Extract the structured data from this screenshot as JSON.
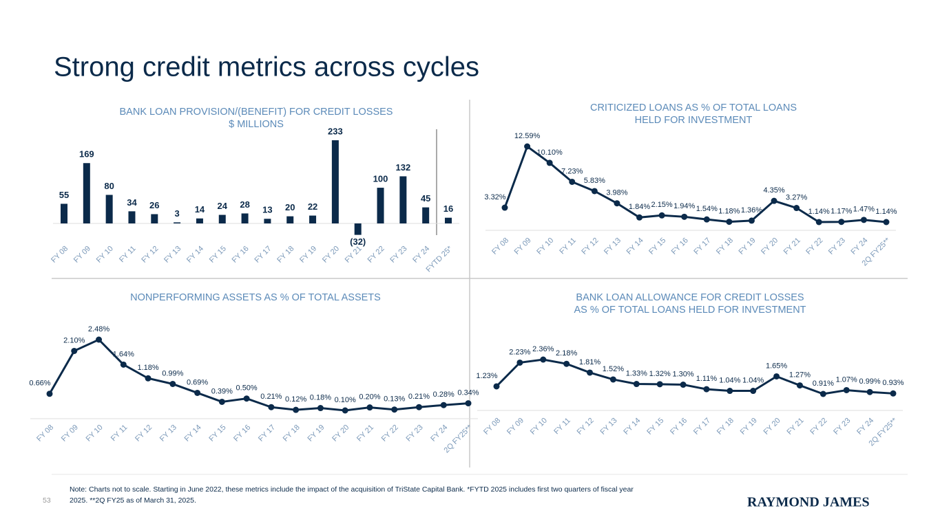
{
  "title": "Strong credit metrics across cycles",
  "note": [
    "Note: Charts not to scale.  Starting in June 2022, these metrics include the impact of the acquisition of TriState Capital Bank. *FYTD 2025 includes first two quarters of fiscal year",
    "2025. **2Q FY25 as of March 31, 2025."
  ],
  "page_number": "53",
  "logo": "RAYMOND JAMES",
  "chart_data": [
    {
      "type": "bar",
      "title": "BANK LOAN PROVISION/(BENEFIT) FOR CREDIT LOSSES",
      "subtitle": "$ MILLIONS",
      "color": "#0b2a4a",
      "categories": [
        "FY 08",
        "FY 09",
        "FY 10",
        "FY 11",
        "FY 12",
        "FY 13",
        "FY 14",
        "FY 15",
        "FY 16",
        "FY 17",
        "FY 18",
        "FY 19",
        "FY 20",
        "FY 21",
        "FY 22",
        "FY 23",
        "FY 24",
        "FYTD 25*"
      ],
      "values": [
        55,
        169,
        80,
        34,
        26,
        3,
        14,
        24,
        28,
        13,
        20,
        22,
        233,
        -32,
        100,
        132,
        45,
        16
      ],
      "value_labels": [
        "55",
        "169",
        "80",
        "34",
        "26",
        "3",
        "14",
        "24",
        "28",
        "13",
        "20",
        "22",
        "233",
        "(32)",
        "100",
        "132",
        "45",
        "16"
      ]
    },
    {
      "type": "line",
      "title": [
        "CRITICIZED LOANS AS % OF TOTAL LOANS",
        "HELD FOR INVESTMENT"
      ],
      "color": "#0b2a4a",
      "categories": [
        "FY 08",
        "FY 09",
        "FY 10",
        "FY 11",
        "FY 12",
        "FY 13",
        "FY 14",
        "FY 15",
        "FY 16",
        "FY 17",
        "FY 18",
        "FY 19",
        "FY 20",
        "FY 21",
        "FY 22",
        "FY 23",
        "FY 24",
        "2Q FY25**"
      ],
      "values": [
        3.32,
        12.59,
        10.1,
        7.23,
        5.83,
        3.98,
        1.84,
        2.15,
        1.94,
        1.54,
        1.18,
        1.36,
        4.35,
        3.27,
        1.14,
        1.17,
        1.47,
        1.14
      ],
      "value_labels": [
        "3.32%",
        "12.59%",
        "10.10%",
        "7.23%",
        "5.83%",
        "3.98%",
        "1.84%",
        "2.15%",
        "1.94%",
        "1.54%",
        "1.18%",
        "1.36%",
        "4.35%",
        "3.27%",
        "1.14%",
        "1.17%",
        "1.47%",
        "1.14%"
      ]
    },
    {
      "type": "line",
      "title": [
        "NONPERFORMING ASSETS AS % OF TOTAL ASSETS"
      ],
      "color": "#0b2a4a",
      "categories": [
        "FY 08",
        "FY 09",
        "FY 10",
        "FY 11",
        "FY 12",
        "FY 13",
        "FY 14",
        "FY 15",
        "FY 16",
        "FY 17",
        "FY 18",
        "FY 19",
        "FY 20",
        "FY 21",
        "FY 22",
        "FY 23",
        "FY 24",
        "2Q FY25**"
      ],
      "values": [
        0.66,
        2.1,
        2.48,
        1.64,
        1.18,
        0.99,
        0.69,
        0.39,
        0.5,
        0.21,
        0.12,
        0.18,
        0.1,
        0.2,
        0.13,
        0.21,
        0.28,
        0.34
      ],
      "value_labels": [
        "0.66%",
        "2.10%",
        "2.48%",
        "1.64%",
        "1.18%",
        "0.99%",
        "0.69%",
        "0.39%",
        "0.50%",
        "0.21%",
        "0.12%",
        "0.18%",
        "0.10%",
        "0.20%",
        "0.13%",
        "0.21%",
        "0.28%",
        "0.34%"
      ]
    },
    {
      "type": "line",
      "title": [
        "BANK LOAN ALLOWANCE FOR CREDIT LOSSES",
        "AS % OF TOTAL LOANS HELD FOR INVESTMENT"
      ],
      "color": "#0b2a4a",
      "categories": [
        "FY 08",
        "FY 09",
        "FY 10",
        "FY 11",
        "FY 12",
        "FY 13",
        "FY 14",
        "FY 15",
        "FY 16",
        "FY 17",
        "FY 18",
        "FY 19",
        "FY 20",
        "FY 21",
        "FY 22",
        "FY 23",
        "FY 24",
        "2Q FY25**"
      ],
      "values": [
        1.23,
        2.23,
        2.36,
        2.18,
        1.81,
        1.52,
        1.33,
        1.32,
        1.3,
        1.11,
        1.04,
        1.04,
        1.65,
        1.27,
        0.91,
        1.07,
        0.99,
        0.93
      ],
      "value_labels": [
        "1.23%",
        "2.23%",
        "2.36%",
        "2.18%",
        "1.81%",
        "1.52%",
        "1.33%",
        "1.32%",
        "1.30%",
        "1.11%",
        "1.04%",
        "1.04%",
        "1.65%",
        "1.27%",
        "0.91%",
        "1.07%",
        "0.99%",
        "0.93%"
      ]
    }
  ]
}
